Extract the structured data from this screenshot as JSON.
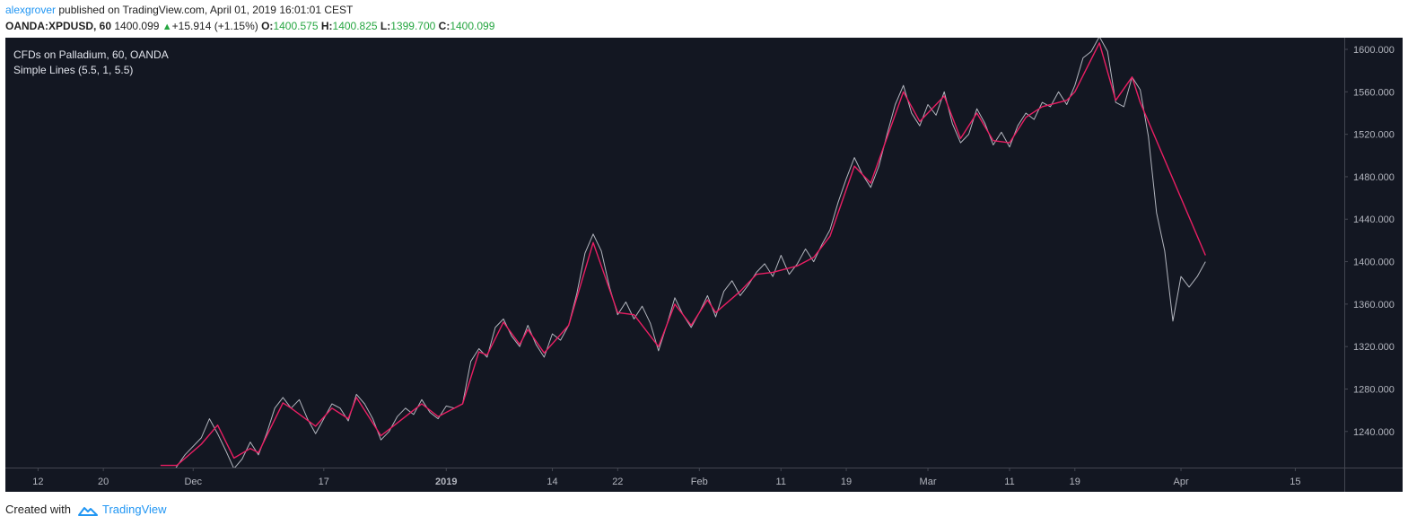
{
  "header": {
    "user": "alexgrover",
    "published_text": "published on TradingView.com, April 01, 2019 16:01:01 CEST",
    "symbol": "OANDA:XPDUSD, 60",
    "last": "1400.099",
    "change": "+15.914 (+1.15%)",
    "open_label": "O:",
    "open": "1400.575",
    "high_label": "H:",
    "high": "1400.825",
    "low_label": "L:",
    "low": "1399.700",
    "close_label": "C:",
    "close": "1400.099"
  },
  "legend": {
    "title": "CFDs on Palladium, 60, OANDA",
    "indicator": "Simple Lines (5.5, 1, 5.5)"
  },
  "footer": {
    "created_with": "Created with",
    "brand": "TradingView"
  },
  "colors": {
    "background": "#131722",
    "price": "#b2b5be",
    "indicator": "#e91e63",
    "axis_text": "#b2b5be",
    "accent": "#2196f3",
    "up": "#26a641"
  },
  "chart_data": {
    "type": "line",
    "title": "CFDs on Palladium, 60, OANDA",
    "xlabel": "",
    "ylabel": "",
    "ylim": [
      1206,
      1611
    ],
    "xlim": [
      "2018-11-08",
      "2019-04-21"
    ],
    "y_ticks": [
      "1240.000",
      "1280.000",
      "1320.000",
      "1360.000",
      "1400.000",
      "1440.000",
      "1480.000",
      "1520.000",
      "1560.000",
      "1600.000"
    ],
    "x_ticks": [
      {
        "label": "12",
        "date": "2018-11-12",
        "bold": false
      },
      {
        "label": "20",
        "date": "2018-11-20",
        "bold": false
      },
      {
        "label": "Dec",
        "date": "2018-12-01",
        "bold": false
      },
      {
        "label": "17",
        "date": "2018-12-17",
        "bold": false
      },
      {
        "label": "2019",
        "date": "2019-01-01",
        "bold": true
      },
      {
        "label": "14",
        "date": "2019-01-14",
        "bold": false
      },
      {
        "label": "22",
        "date": "2019-01-22",
        "bold": false
      },
      {
        "label": "Feb",
        "date": "2019-02-01",
        "bold": false
      },
      {
        "label": "11",
        "date": "2019-02-11",
        "bold": false
      },
      {
        "label": "19",
        "date": "2019-02-19",
        "bold": false
      },
      {
        "label": "Mar",
        "date": "2019-03-01",
        "bold": false
      },
      {
        "label": "11",
        "date": "2019-03-11",
        "bold": false
      },
      {
        "label": "19",
        "date": "2019-03-19",
        "bold": false
      },
      {
        "label": "Apr",
        "date": "2019-04-01",
        "bold": false
      },
      {
        "label": "15",
        "date": "2019-04-15",
        "bold": false
      }
    ],
    "series": [
      {
        "name": "OANDA:XPDUSD",
        "color": "#b2b5be",
        "points": [
          [
            "2018-11-28",
            1196
          ],
          [
            "2018-11-30",
            1218
          ],
          [
            "2018-12-02",
            1234
          ],
          [
            "2018-12-03",
            1252
          ],
          [
            "2018-12-04",
            1238
          ],
          [
            "2018-12-05",
            1222
          ],
          [
            "2018-12-06",
            1205
          ],
          [
            "2018-12-07",
            1214
          ],
          [
            "2018-12-08",
            1230
          ],
          [
            "2018-12-09",
            1218
          ],
          [
            "2018-12-10",
            1238
          ],
          [
            "2018-12-11",
            1262
          ],
          [
            "2018-12-12",
            1272
          ],
          [
            "2018-12-13",
            1262
          ],
          [
            "2018-12-14",
            1270
          ],
          [
            "2018-12-15",
            1252
          ],
          [
            "2018-12-16",
            1238
          ],
          [
            "2018-12-17",
            1252
          ],
          [
            "2018-12-18",
            1266
          ],
          [
            "2018-12-19",
            1262
          ],
          [
            "2018-12-20",
            1250
          ],
          [
            "2018-12-21",
            1275
          ],
          [
            "2018-12-22",
            1266
          ],
          [
            "2018-12-23",
            1252
          ],
          [
            "2018-12-24",
            1232
          ],
          [
            "2018-12-25",
            1240
          ],
          [
            "2018-12-26",
            1254
          ],
          [
            "2018-12-27",
            1262
          ],
          [
            "2018-12-28",
            1256
          ],
          [
            "2018-12-29",
            1270
          ],
          [
            "2018-12-30",
            1258
          ],
          [
            "2018-12-31",
            1252
          ],
          [
            "2019-01-01",
            1264
          ],
          [
            "2019-01-02",
            1262
          ],
          [
            "2019-01-03",
            1266
          ],
          [
            "2019-01-04",
            1306
          ],
          [
            "2019-01-05",
            1318
          ],
          [
            "2019-01-06",
            1310
          ],
          [
            "2019-01-07",
            1338
          ],
          [
            "2019-01-08",
            1346
          ],
          [
            "2019-01-09",
            1330
          ],
          [
            "2019-01-10",
            1320
          ],
          [
            "2019-01-11",
            1340
          ],
          [
            "2019-01-12",
            1322
          ],
          [
            "2019-01-13",
            1310
          ],
          [
            "2019-01-14",
            1332
          ],
          [
            "2019-01-15",
            1326
          ],
          [
            "2019-01-16",
            1340
          ],
          [
            "2019-01-17",
            1370
          ],
          [
            "2019-01-18",
            1408
          ],
          [
            "2019-01-19",
            1426
          ],
          [
            "2019-01-20",
            1410
          ],
          [
            "2019-01-21",
            1376
          ],
          [
            "2019-01-22",
            1350
          ],
          [
            "2019-01-23",
            1362
          ],
          [
            "2019-01-24",
            1346
          ],
          [
            "2019-01-25",
            1358
          ],
          [
            "2019-01-26",
            1342
          ],
          [
            "2019-01-27",
            1316
          ],
          [
            "2019-01-28",
            1340
          ],
          [
            "2019-01-29",
            1366
          ],
          [
            "2019-01-30",
            1350
          ],
          [
            "2019-01-31",
            1338
          ],
          [
            "2019-02-01",
            1352
          ],
          [
            "2019-02-02",
            1368
          ],
          [
            "2019-02-03",
            1348
          ],
          [
            "2019-02-04",
            1372
          ],
          [
            "2019-02-05",
            1382
          ],
          [
            "2019-02-06",
            1368
          ],
          [
            "2019-02-07",
            1378
          ],
          [
            "2019-02-08",
            1390
          ],
          [
            "2019-02-09",
            1398
          ],
          [
            "2019-02-10",
            1386
          ],
          [
            "2019-02-11",
            1406
          ],
          [
            "2019-02-12",
            1388
          ],
          [
            "2019-02-13",
            1398
          ],
          [
            "2019-02-14",
            1412
          ],
          [
            "2019-02-15",
            1400
          ],
          [
            "2019-02-16",
            1416
          ],
          [
            "2019-02-17",
            1430
          ],
          [
            "2019-02-18",
            1456
          ],
          [
            "2019-02-19",
            1478
          ],
          [
            "2019-02-20",
            1498
          ],
          [
            "2019-02-21",
            1482
          ],
          [
            "2019-02-22",
            1470
          ],
          [
            "2019-02-23",
            1490
          ],
          [
            "2019-02-24",
            1520
          ],
          [
            "2019-02-25",
            1548
          ],
          [
            "2019-02-26",
            1566
          ],
          [
            "2019-02-27",
            1540
          ],
          [
            "2019-02-28",
            1528
          ],
          [
            "2019-03-01",
            1548
          ],
          [
            "2019-03-02",
            1538
          ],
          [
            "2019-03-03",
            1560
          ],
          [
            "2019-03-04",
            1530
          ],
          [
            "2019-03-05",
            1512
          ],
          [
            "2019-03-06",
            1520
          ],
          [
            "2019-03-07",
            1544
          ],
          [
            "2019-03-08",
            1530
          ],
          [
            "2019-03-09",
            1510
          ],
          [
            "2019-03-10",
            1522
          ],
          [
            "2019-03-11",
            1508
          ],
          [
            "2019-03-12",
            1528
          ],
          [
            "2019-03-13",
            1540
          ],
          [
            "2019-03-14",
            1534
          ],
          [
            "2019-03-15",
            1550
          ],
          [
            "2019-03-16",
            1546
          ],
          [
            "2019-03-17",
            1560
          ],
          [
            "2019-03-18",
            1548
          ],
          [
            "2019-03-19",
            1566
          ],
          [
            "2019-03-20",
            1592
          ],
          [
            "2019-03-21",
            1598
          ],
          [
            "2019-03-22",
            1612
          ],
          [
            "2019-03-23",
            1598
          ],
          [
            "2019-03-24",
            1550
          ],
          [
            "2019-03-25",
            1546
          ],
          [
            "2019-03-26",
            1574
          ],
          [
            "2019-03-27",
            1562
          ],
          [
            "2019-03-28",
            1518
          ],
          [
            "2019-03-29",
            1446
          ],
          [
            "2019-03-30",
            1410
          ],
          [
            "2019-03-31",
            1344
          ],
          [
            "2019-04-01",
            1386
          ],
          [
            "2019-04-02",
            1376
          ],
          [
            "2019-04-03",
            1386
          ],
          [
            "2019-04-04",
            1400
          ]
        ]
      },
      {
        "name": "Simple Lines (5.5, 1, 5.5)",
        "color": "#e91e63",
        "points": [
          [
            "2018-11-27",
            1208
          ],
          [
            "2018-11-29",
            1208
          ],
          [
            "2018-12-02",
            1228
          ],
          [
            "2018-12-04",
            1246
          ],
          [
            "2018-12-06",
            1215
          ],
          [
            "2018-12-08",
            1224
          ],
          [
            "2018-12-09",
            1220
          ],
          [
            "2018-12-12",
            1267
          ],
          [
            "2018-12-13",
            1262
          ],
          [
            "2018-12-16",
            1245
          ],
          [
            "2018-12-18",
            1262
          ],
          [
            "2018-12-20",
            1252
          ],
          [
            "2018-12-21",
            1272
          ],
          [
            "2018-12-24",
            1236
          ],
          [
            "2018-12-25",
            1242
          ],
          [
            "2018-12-28",
            1260
          ],
          [
            "2018-12-29",
            1266
          ],
          [
            "2018-12-31",
            1254
          ],
          [
            "2019-01-03",
            1266
          ],
          [
            "2019-01-05",
            1315
          ],
          [
            "2019-01-06",
            1312
          ],
          [
            "2019-01-08",
            1343
          ],
          [
            "2019-01-10",
            1322
          ],
          [
            "2019-01-11",
            1336
          ],
          [
            "2019-01-13",
            1314
          ],
          [
            "2019-01-16",
            1340
          ],
          [
            "2019-01-19",
            1418
          ],
          [
            "2019-01-22",
            1352
          ],
          [
            "2019-01-24",
            1350
          ],
          [
            "2019-01-27",
            1320
          ],
          [
            "2019-01-29",
            1360
          ],
          [
            "2019-01-31",
            1340
          ],
          [
            "2019-02-02",
            1364
          ],
          [
            "2019-02-03",
            1352
          ],
          [
            "2019-02-06",
            1372
          ],
          [
            "2019-02-08",
            1388
          ],
          [
            "2019-02-10",
            1390
          ],
          [
            "2019-02-13",
            1396
          ],
          [
            "2019-02-15",
            1404
          ],
          [
            "2019-02-17",
            1424
          ],
          [
            "2019-02-20",
            1490
          ],
          [
            "2019-02-22",
            1474
          ],
          [
            "2019-02-26",
            1560
          ],
          [
            "2019-02-28",
            1532
          ],
          [
            "2019-03-03",
            1556
          ],
          [
            "2019-03-05",
            1516
          ],
          [
            "2019-03-07",
            1540
          ],
          [
            "2019-03-09",
            1514
          ],
          [
            "2019-03-11",
            1512
          ],
          [
            "2019-03-13",
            1536
          ],
          [
            "2019-03-15",
            1546
          ],
          [
            "2019-03-18",
            1552
          ],
          [
            "2019-03-19",
            1560
          ],
          [
            "2019-03-22",
            1606
          ],
          [
            "2019-03-24",
            1552
          ],
          [
            "2019-03-26",
            1574
          ],
          [
            "2019-03-27",
            1550
          ],
          [
            "2019-04-04",
            1406
          ]
        ]
      }
    ]
  }
}
